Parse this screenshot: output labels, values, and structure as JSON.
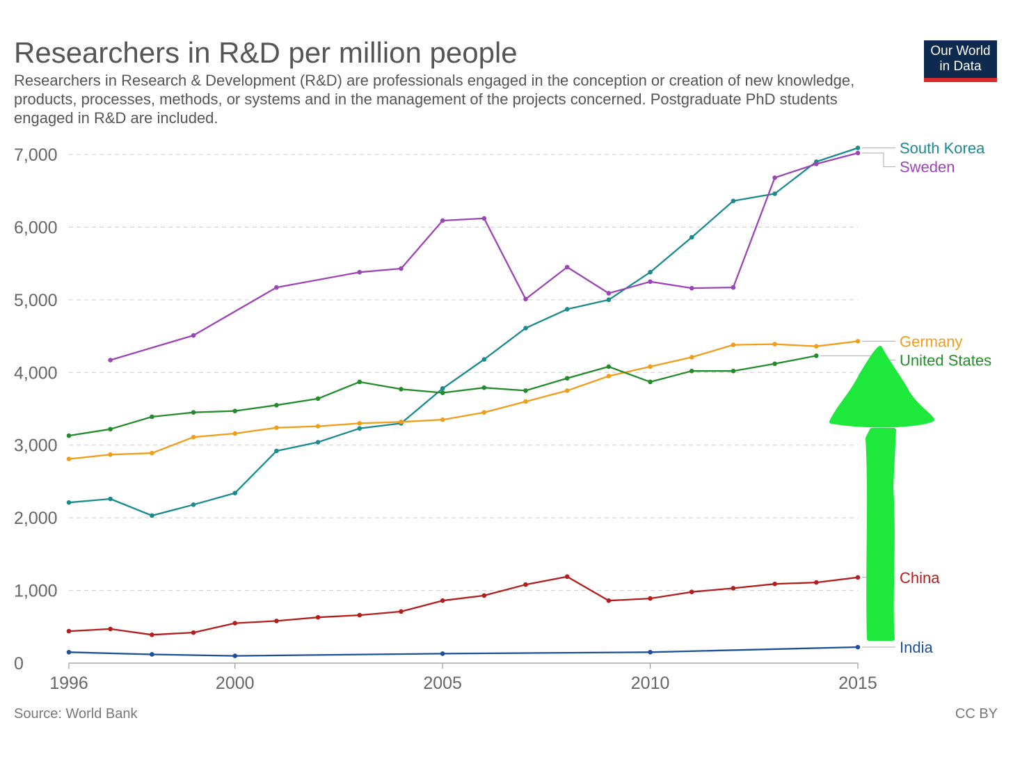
{
  "header": {
    "title": "Researchers in R&D per million people",
    "subtitle": "Researchers in Research & Development (R&D) are professionals engaged in the conception or creation of new knowledge, products, processes, methods, or systems and in the management of the projects concerned. Postgraduate PhD students engaged in R&D are included.",
    "logo_line1": "Our World",
    "logo_line2": "in Data"
  },
  "footer": {
    "source": "Source: World Bank",
    "license": "CC BY"
  },
  "colors": {
    "South Korea": "#1a8a8f",
    "Sweden": "#9b45b5",
    "Germany": "#f09d1c",
    "United States": "#238b2c",
    "China": "#b21d1d",
    "India": "#1d4f9b",
    "arrow": "#1fe83c",
    "grid": "#cccccc",
    "logo_bg": "#0f2a4f",
    "logo_bar": "#d42b2b"
  },
  "chart_data": {
    "type": "line",
    "xlabel": "",
    "ylabel": "",
    "xlim": [
      1996,
      2015
    ],
    "ylim": [
      0,
      7000
    ],
    "x_ticks": [
      1996,
      2000,
      2005,
      2010,
      2015
    ],
    "y_ticks": [
      0,
      1000,
      2000,
      3000,
      4000,
      5000,
      6000,
      7000
    ],
    "y_tick_labels": [
      "0",
      "1,000",
      "2,000",
      "3,000",
      "4,000",
      "5,000",
      "6,000",
      "7,000"
    ],
    "grid": "horizontal dashed",
    "annotation": "hand-drawn green upward arrow near right edge",
    "series": [
      {
        "name": "South Korea",
        "points": [
          [
            1996,
            2210
          ],
          [
            1997,
            2260
          ],
          [
            1998,
            2030
          ],
          [
            1999,
            2180
          ],
          [
            2000,
            2340
          ],
          [
            2001,
            2920
          ],
          [
            2002,
            3040
          ],
          [
            2003,
            3230
          ],
          [
            2004,
            3300
          ],
          [
            2005,
            3780
          ],
          [
            2006,
            4180
          ],
          [
            2007,
            4610
          ],
          [
            2008,
            4870
          ],
          [
            2009,
            5000
          ],
          [
            2010,
            5380
          ],
          [
            2011,
            5860
          ],
          [
            2012,
            6360
          ],
          [
            2013,
            6460
          ],
          [
            2014,
            6900
          ],
          [
            2015,
            7090
          ]
        ]
      },
      {
        "name": "Sweden",
        "points": [
          [
            1997,
            4170
          ],
          [
            1999,
            4510
          ],
          [
            2001,
            5170
          ],
          [
            2003,
            5380
          ],
          [
            2004,
            5430
          ],
          [
            2005,
            6090
          ],
          [
            2006,
            6120
          ],
          [
            2007,
            5010
          ],
          [
            2008,
            5450
          ],
          [
            2009,
            5090
          ],
          [
            2010,
            5250
          ],
          [
            2011,
            5160
          ],
          [
            2012,
            5170
          ],
          [
            2013,
            6680
          ],
          [
            2014,
            6870
          ],
          [
            2015,
            7020
          ]
        ]
      },
      {
        "name": "Germany",
        "points": [
          [
            1996,
            2810
          ],
          [
            1997,
            2870
          ],
          [
            1998,
            2890
          ],
          [
            1999,
            3110
          ],
          [
            2000,
            3160
          ],
          [
            2001,
            3240
          ],
          [
            2002,
            3260
          ],
          [
            2003,
            3300
          ],
          [
            2004,
            3320
          ],
          [
            2005,
            3350
          ],
          [
            2006,
            3450
          ],
          [
            2007,
            3600
          ],
          [
            2008,
            3750
          ],
          [
            2009,
            3950
          ],
          [
            2010,
            4080
          ],
          [
            2011,
            4210
          ],
          [
            2012,
            4380
          ],
          [
            2013,
            4390
          ],
          [
            2014,
            4360
          ],
          [
            2015,
            4430
          ]
        ]
      },
      {
        "name": "United States",
        "points": [
          [
            1996,
            3130
          ],
          [
            1997,
            3220
          ],
          [
            1998,
            3390
          ],
          [
            1999,
            3450
          ],
          [
            2000,
            3470
          ],
          [
            2001,
            3550
          ],
          [
            2002,
            3640
          ],
          [
            2003,
            3870
          ],
          [
            2004,
            3770
          ],
          [
            2005,
            3720
          ],
          [
            2006,
            3790
          ],
          [
            2007,
            3750
          ],
          [
            2008,
            3920
          ],
          [
            2009,
            4080
          ],
          [
            2010,
            3870
          ],
          [
            2011,
            4020
          ],
          [
            2012,
            4020
          ],
          [
            2013,
            4120
          ],
          [
            2014,
            4230
          ]
        ]
      },
      {
        "name": "China",
        "points": [
          [
            1996,
            440
          ],
          [
            1997,
            470
          ],
          [
            1998,
            390
          ],
          [
            1999,
            420
          ],
          [
            2000,
            550
          ],
          [
            2001,
            580
          ],
          [
            2002,
            630
          ],
          [
            2003,
            660
          ],
          [
            2004,
            710
          ],
          [
            2005,
            860
          ],
          [
            2006,
            930
          ],
          [
            2007,
            1080
          ],
          [
            2008,
            1190
          ],
          [
            2009,
            860
          ],
          [
            2010,
            890
          ],
          [
            2011,
            980
          ],
          [
            2012,
            1030
          ],
          [
            2013,
            1090
          ],
          [
            2014,
            1110
          ],
          [
            2015,
            1180
          ]
        ]
      },
      {
        "name": "India",
        "points": [
          [
            1996,
            150
          ],
          [
            1998,
            120
          ],
          [
            2000,
            100
          ],
          [
            2005,
            130
          ],
          [
            2010,
            150
          ],
          [
            2015,
            220
          ]
        ]
      }
    ]
  }
}
